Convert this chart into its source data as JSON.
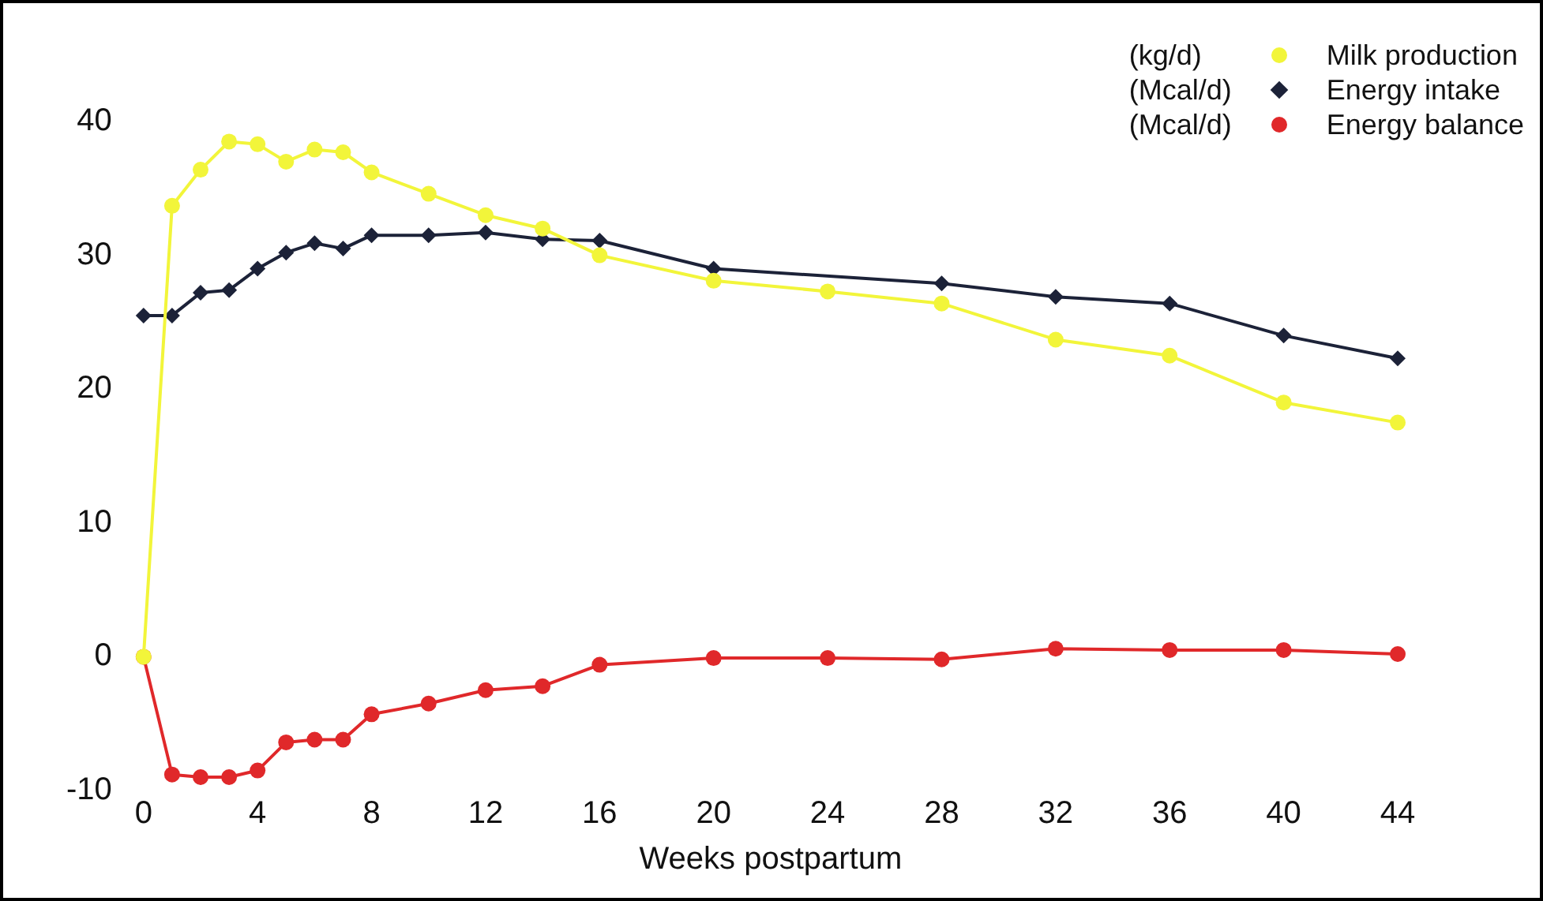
{
  "chart_data": {
    "type": "line",
    "xlabel": "Weeks postpartum",
    "x": [
      0,
      1,
      2,
      3,
      4,
      5,
      6,
      7,
      8,
      10,
      12,
      14,
      16,
      20,
      24,
      28,
      32,
      36,
      40,
      44
    ],
    "series": [
      {
        "name": "Milk production",
        "color": "#f2f53a",
        "marker": "circle",
        "values": [
          0,
          33.7,
          36.4,
          38.5,
          38.3,
          37,
          37.9,
          37.7,
          36.2,
          34.6,
          33,
          32,
          30,
          28.1,
          27.3,
          26.4,
          23.7,
          22.5,
          19,
          17.5
        ]
      },
      {
        "name": "Energy intake",
        "color": "#1c2238",
        "marker": "diamond",
        "values": [
          25.5,
          25.5,
          27.2,
          27.4,
          29,
          30.2,
          30.9,
          30.5,
          31.5,
          31.5,
          31.7,
          31.2,
          31.1,
          29,
          null,
          27.9,
          26.9,
          26.4,
          24,
          22.3
        ]
      },
      {
        "name": "Energy balance",
        "color": "#e0282a",
        "marker": "circle",
        "values": [
          0,
          -8.8,
          -9,
          -9,
          -8.5,
          -6.4,
          -6.2,
          -6.2,
          -4.3,
          -3.5,
          -2.5,
          -2.2,
          -0.6,
          -0.1,
          -0.1,
          -0.2,
          0.6,
          0.5,
          0.5,
          0.2
        ]
      }
    ],
    "annotations": [
      "(kg/d)",
      "(Mcal/d)",
      "(Mcal/d)"
    ],
    "xlim": [
      0,
      44
    ],
    "xticks": [
      0,
      4,
      8,
      12,
      16,
      20,
      24,
      28,
      32,
      36,
      40,
      44
    ],
    "ylim": [
      -10,
      40
    ],
    "yticks": [
      -10,
      0,
      10,
      20,
      30,
      40
    ],
    "grid": false,
    "legend": "top right",
    "line_style": "solid"
  }
}
